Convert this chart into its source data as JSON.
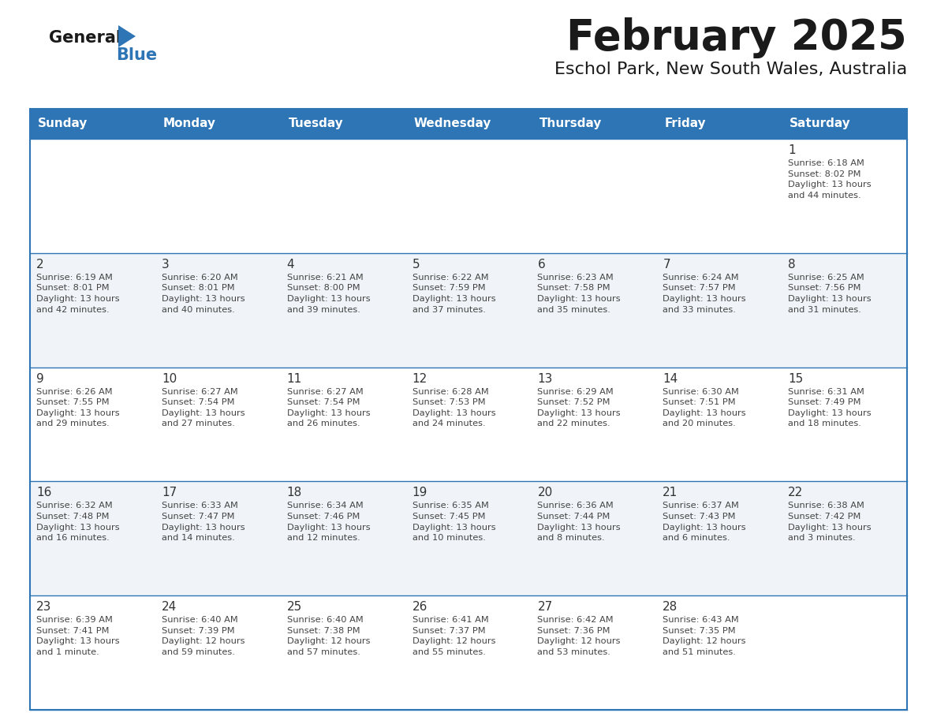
{
  "title": "February 2025",
  "subtitle": "Eschol Park, New South Wales, Australia",
  "header_bg": "#2e75b6",
  "header_text_color": "#ffffff",
  "cell_bg_odd": "#ffffff",
  "cell_bg_even": "#f0f4f8",
  "day_number_color": "#333333",
  "text_color": "#444444",
  "border_color": "#2e75b6",
  "logo_general_color": "#1a1a1a",
  "logo_blue_color": "#2e75b6",
  "logo_triangle_color": "#2e75b6",
  "days_of_week": [
    "Sunday",
    "Monday",
    "Tuesday",
    "Wednesday",
    "Thursday",
    "Friday",
    "Saturday"
  ],
  "weeks": [
    [
      {
        "day": "",
        "info": ""
      },
      {
        "day": "",
        "info": ""
      },
      {
        "day": "",
        "info": ""
      },
      {
        "day": "",
        "info": ""
      },
      {
        "day": "",
        "info": ""
      },
      {
        "day": "",
        "info": ""
      },
      {
        "day": "1",
        "info": "Sunrise: 6:18 AM\nSunset: 8:02 PM\nDaylight: 13 hours\nand 44 minutes."
      }
    ],
    [
      {
        "day": "2",
        "info": "Sunrise: 6:19 AM\nSunset: 8:01 PM\nDaylight: 13 hours\nand 42 minutes."
      },
      {
        "day": "3",
        "info": "Sunrise: 6:20 AM\nSunset: 8:01 PM\nDaylight: 13 hours\nand 40 minutes."
      },
      {
        "day": "4",
        "info": "Sunrise: 6:21 AM\nSunset: 8:00 PM\nDaylight: 13 hours\nand 39 minutes."
      },
      {
        "day": "5",
        "info": "Sunrise: 6:22 AM\nSunset: 7:59 PM\nDaylight: 13 hours\nand 37 minutes."
      },
      {
        "day": "6",
        "info": "Sunrise: 6:23 AM\nSunset: 7:58 PM\nDaylight: 13 hours\nand 35 minutes."
      },
      {
        "day": "7",
        "info": "Sunrise: 6:24 AM\nSunset: 7:57 PM\nDaylight: 13 hours\nand 33 minutes."
      },
      {
        "day": "8",
        "info": "Sunrise: 6:25 AM\nSunset: 7:56 PM\nDaylight: 13 hours\nand 31 minutes."
      }
    ],
    [
      {
        "day": "9",
        "info": "Sunrise: 6:26 AM\nSunset: 7:55 PM\nDaylight: 13 hours\nand 29 minutes."
      },
      {
        "day": "10",
        "info": "Sunrise: 6:27 AM\nSunset: 7:54 PM\nDaylight: 13 hours\nand 27 minutes."
      },
      {
        "day": "11",
        "info": "Sunrise: 6:27 AM\nSunset: 7:54 PM\nDaylight: 13 hours\nand 26 minutes."
      },
      {
        "day": "12",
        "info": "Sunrise: 6:28 AM\nSunset: 7:53 PM\nDaylight: 13 hours\nand 24 minutes."
      },
      {
        "day": "13",
        "info": "Sunrise: 6:29 AM\nSunset: 7:52 PM\nDaylight: 13 hours\nand 22 minutes."
      },
      {
        "day": "14",
        "info": "Sunrise: 6:30 AM\nSunset: 7:51 PM\nDaylight: 13 hours\nand 20 minutes."
      },
      {
        "day": "15",
        "info": "Sunrise: 6:31 AM\nSunset: 7:49 PM\nDaylight: 13 hours\nand 18 minutes."
      }
    ],
    [
      {
        "day": "16",
        "info": "Sunrise: 6:32 AM\nSunset: 7:48 PM\nDaylight: 13 hours\nand 16 minutes."
      },
      {
        "day": "17",
        "info": "Sunrise: 6:33 AM\nSunset: 7:47 PM\nDaylight: 13 hours\nand 14 minutes."
      },
      {
        "day": "18",
        "info": "Sunrise: 6:34 AM\nSunset: 7:46 PM\nDaylight: 13 hours\nand 12 minutes."
      },
      {
        "day": "19",
        "info": "Sunrise: 6:35 AM\nSunset: 7:45 PM\nDaylight: 13 hours\nand 10 minutes."
      },
      {
        "day": "20",
        "info": "Sunrise: 6:36 AM\nSunset: 7:44 PM\nDaylight: 13 hours\nand 8 minutes."
      },
      {
        "day": "21",
        "info": "Sunrise: 6:37 AM\nSunset: 7:43 PM\nDaylight: 13 hours\nand 6 minutes."
      },
      {
        "day": "22",
        "info": "Sunrise: 6:38 AM\nSunset: 7:42 PM\nDaylight: 13 hours\nand 3 minutes."
      }
    ],
    [
      {
        "day": "23",
        "info": "Sunrise: 6:39 AM\nSunset: 7:41 PM\nDaylight: 13 hours\nand 1 minute."
      },
      {
        "day": "24",
        "info": "Sunrise: 6:40 AM\nSunset: 7:39 PM\nDaylight: 12 hours\nand 59 minutes."
      },
      {
        "day": "25",
        "info": "Sunrise: 6:40 AM\nSunset: 7:38 PM\nDaylight: 12 hours\nand 57 minutes."
      },
      {
        "day": "26",
        "info": "Sunrise: 6:41 AM\nSunset: 7:37 PM\nDaylight: 12 hours\nand 55 minutes."
      },
      {
        "day": "27",
        "info": "Sunrise: 6:42 AM\nSunset: 7:36 PM\nDaylight: 12 hours\nand 53 minutes."
      },
      {
        "day": "28",
        "info": "Sunrise: 6:43 AM\nSunset: 7:35 PM\nDaylight: 12 hours\nand 51 minutes."
      },
      {
        "day": "",
        "info": ""
      }
    ]
  ]
}
